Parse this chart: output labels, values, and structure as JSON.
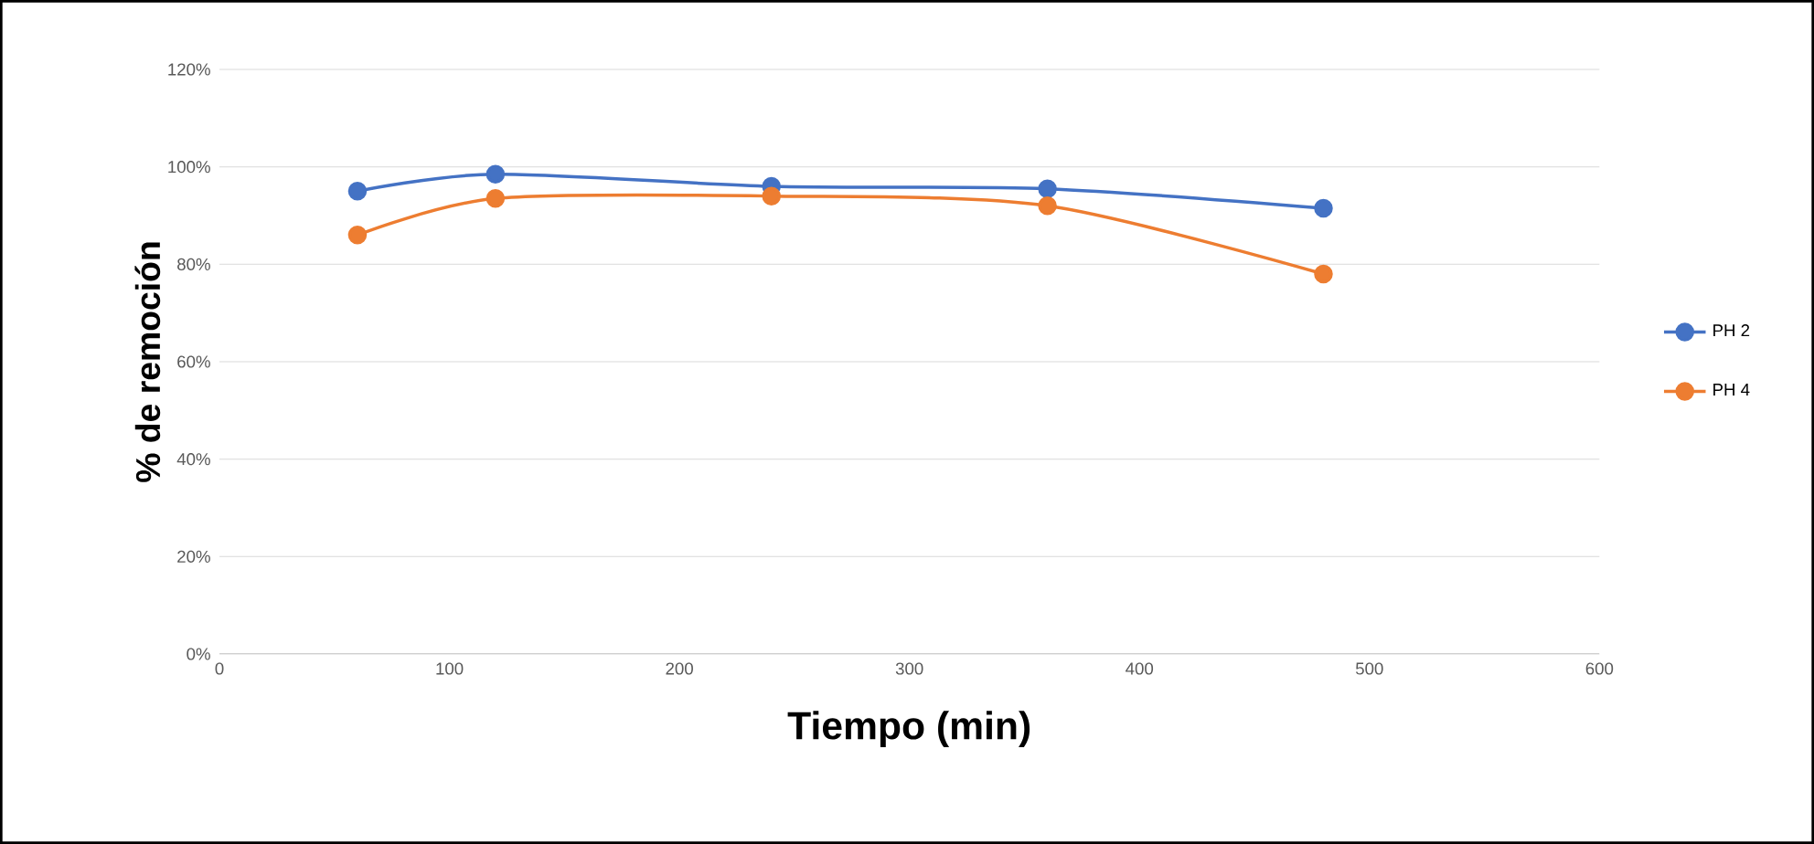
{
  "chart_data": {
    "type": "line",
    "xlabel": "Tiempo (min)",
    "ylabel": "% de remoción",
    "x": [
      60,
      120,
      240,
      360,
      480
    ],
    "series": [
      {
        "name": "PH 2",
        "color": "#4472c4",
        "values": [
          95,
          98.5,
          96,
          95.5,
          91.5
        ]
      },
      {
        "name": "PH 4",
        "color": "#ed7d31",
        "values": [
          86,
          93.5,
          94,
          92,
          78
        ]
      }
    ],
    "xlim": [
      0,
      600
    ],
    "xticks": [
      0,
      100,
      200,
      300,
      400,
      500,
      600
    ],
    "ylim": [
      0,
      120
    ],
    "yticks": [
      {
        "value": 0,
        "label": "0%"
      },
      {
        "value": 20,
        "label": "20%"
      },
      {
        "value": 40,
        "label": "40%"
      },
      {
        "value": 60,
        "label": "60%"
      },
      {
        "value": 80,
        "label": "80%"
      },
      {
        "value": 100,
        "label": "100%"
      },
      {
        "value": 120,
        "label": "120%"
      }
    ],
    "grid": "y",
    "legend": "right",
    "marker": "circle",
    "line_style": "solid"
  }
}
